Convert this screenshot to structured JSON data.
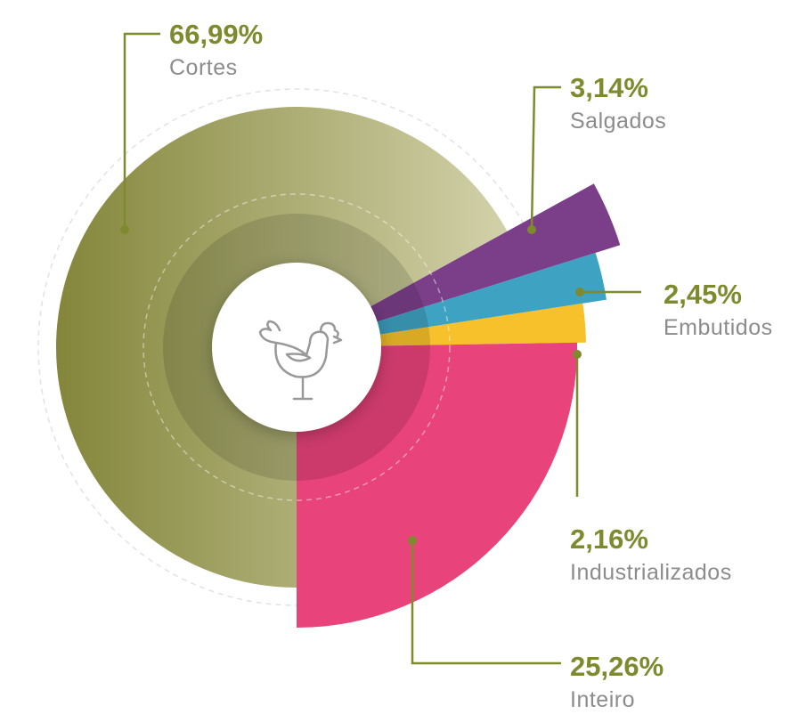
{
  "chart_data": {
    "type": "pie",
    "categories": [
      "Cortes",
      "Salgados",
      "Embutidos",
      "Industrializados",
      "Inteiro"
    ],
    "values": [
      66.99,
      3.14,
      2.45,
      2.16,
      25.26
    ],
    "value_labels": [
      "66,99%",
      "3,14%",
      "2,45%",
      "2,16%",
      "25,26%"
    ],
    "colors": [
      "#8a8b3f",
      "#7b3f8a",
      "#3ea2c2",
      "#f6c12b",
      "#e8437a"
    ]
  }
}
